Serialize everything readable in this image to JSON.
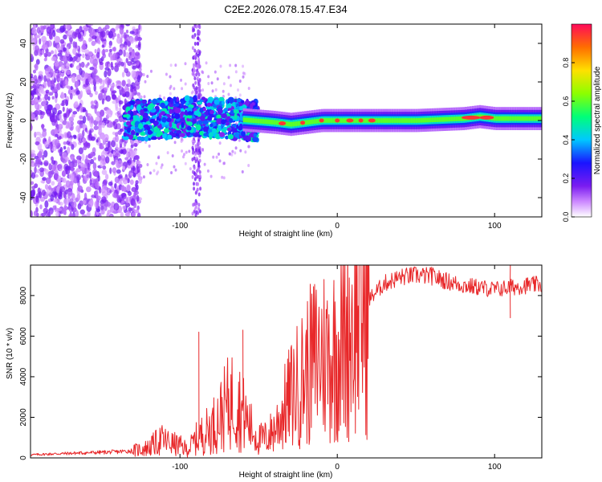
{
  "title": "C2E2.2026.078.15.47.E34",
  "chart_data": [
    {
      "type": "heatmap",
      "xlabel": "Height of straight line (km)",
      "ylabel": "Frequency (Hz)",
      "xlim": [
        -195,
        130
      ],
      "ylim": [
        -50,
        50
      ],
      "xticks": [
        -100,
        0,
        100
      ],
      "yticks": [
        -40,
        -20,
        0,
        20,
        40
      ],
      "colorbar": {
        "label": "Normalized spectral amplitude",
        "range": [
          0,
          1
        ],
        "ticks": [
          "0.0",
          "0.2",
          "0.4",
          "0.6",
          "0.8"
        ]
      },
      "ridge": {
        "description_points_x": [
          -130,
          -110,
          -90,
          -70,
          -55,
          -40,
          -30,
          -20,
          -10,
          0,
          10,
          20,
          50,
          80,
          90,
          100,
          130
        ],
        "description_points_f": [
          0,
          1,
          2,
          1,
          0,
          -1,
          -2,
          -1,
          0,
          0,
          0,
          0,
          0,
          1,
          2,
          1,
          1
        ]
      }
    },
    {
      "type": "line",
      "xlabel": "Height of straight line (km)",
      "ylabel": "SNR (10 * v/v)",
      "xlim": [
        -195,
        130
      ],
      "ylim": [
        0,
        9500
      ],
      "xticks": [
        -100,
        0,
        100
      ],
      "yticks": [
        0,
        2000,
        4000,
        6000,
        8000
      ],
      "series": [
        {
          "name": "SNR",
          "color": "#e8282a",
          "x": [
            -195,
            -180,
            -160,
            -140,
            -130,
            -120,
            -112,
            -105,
            -100,
            -95,
            -90,
            -85,
            -80,
            -75,
            -70,
            -65,
            -60,
            -55,
            -50,
            -45,
            -40,
            -35,
            -30,
            -25,
            -20,
            -15,
            -10,
            -5,
            0,
            5,
            10,
            15,
            20,
            25,
            30,
            40,
            50,
            60,
            70,
            80,
            90,
            100,
            110,
            120,
            130
          ],
          "y": [
            150,
            200,
            250,
            300,
            350,
            500,
            900,
            700,
            600,
            400,
            900,
            1200,
            1500,
            2000,
            2600,
            3000,
            2200,
            1500,
            900,
            1000,
            1400,
            2200,
            3000,
            3600,
            4200,
            4800,
            5200,
            5000,
            5400,
            6000,
            6800,
            7200,
            7800,
            8200,
            8600,
            8900,
            9000,
            8950,
            8700,
            8500,
            8400,
            8300,
            8400,
            8500,
            8550
          ]
        }
      ],
      "spikes": [
        {
          "x": -88,
          "y": 6200
        },
        {
          "x": -60,
          "y": 6300
        },
        {
          "x": 60,
          "y": 9400
        },
        {
          "x": 110,
          "y": 9500
        },
        {
          "x": 110,
          "y": 6900
        }
      ]
    }
  ]
}
